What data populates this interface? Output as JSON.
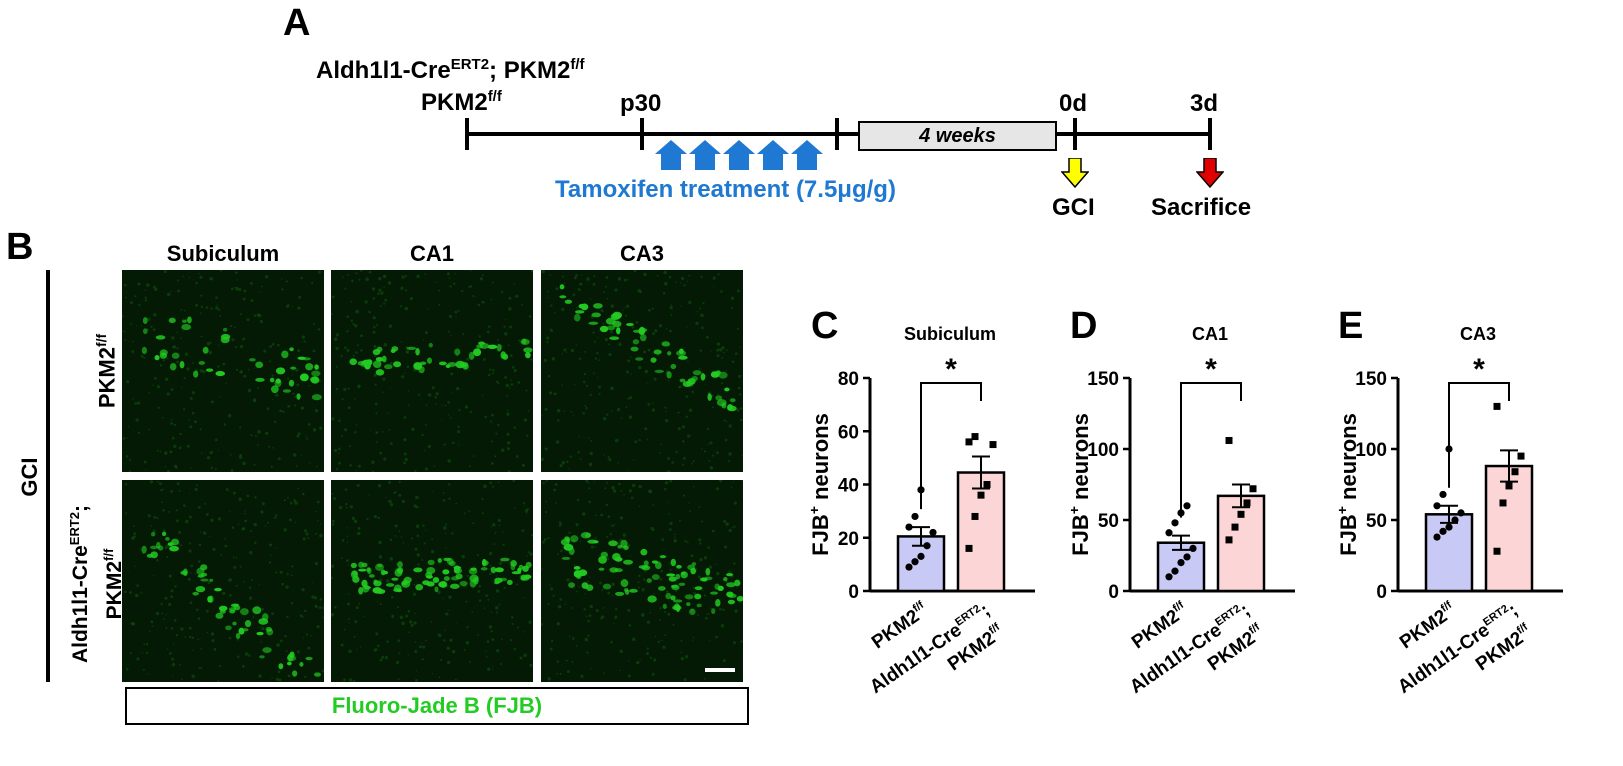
{
  "panel_letters": {
    "a": "A",
    "b": "B",
    "c": "C",
    "d": "D",
    "e": "E"
  },
  "timeline": {
    "genotype_line1_base": "Aldh1l1-Cre",
    "genotype_line1_sup": "ERT2",
    "genotype_line1_mid": "; PKM2",
    "genotype_line1_sup2": "f/f",
    "genotype_line2_base": "PKM2",
    "genotype_line2_sup": "f/f",
    "p30": "p30",
    "weeks_box": "4 weeks",
    "day0": "0d",
    "day3": "3d",
    "tamoxifen": "Tamoxifen treatment (7.5μg/g)",
    "gci": "GCI",
    "sacrifice": "Sacrifice",
    "injection_count": 5,
    "colors": {
      "tamoxifen": "#1f78d1",
      "gci_arrow": "#ffff00",
      "sacrifice_arrow": "#e00000",
      "box_fill": "#e6e6e6"
    }
  },
  "panel_b": {
    "regions": [
      "Subiculum",
      "CA1",
      "CA3"
    ],
    "condition": "GCI",
    "row1_base": "PKM2",
    "row1_sup": "f/f",
    "row2_line1_base": "Aldh1l1-Cre",
    "row2_line1_sup": "ERT2",
    "row2_line1_end": ";",
    "row2_line2_base": "PKM2",
    "row2_line2_sup": "f/f",
    "stain_label": "Fluoro-Jade B (FJB)",
    "colors": {
      "stain": "#22cc22",
      "scale_bar": "#ffffff"
    }
  },
  "chart_data": [
    {
      "type": "bar",
      "panel": "C",
      "title": "Subiculum",
      "ylabel": "FJB+ neurons",
      "ylim": [
        0,
        80
      ],
      "yticks": [
        0,
        20,
        40,
        60,
        80
      ],
      "categories": [
        "PKM2f/f",
        "Aldh1l1-CreERT2; PKM2f/f"
      ],
      "values": [
        20.5,
        44.5
      ],
      "sem": [
        3.5,
        6.0
      ],
      "points": [
        [
          9,
          11,
          13,
          17,
          22,
          24,
          28,
          38
        ],
        [
          16,
          28,
          36,
          40,
          55,
          56,
          58
        ]
      ],
      "significance": "*",
      "colors": [
        "#c9c9f5",
        "#fcd6d6"
      ]
    },
    {
      "type": "bar",
      "panel": "D",
      "title": "CA1",
      "ylabel": "FJB+ neurons",
      "ylim": [
        0,
        150
      ],
      "yticks": [
        0,
        50,
        100,
        150
      ],
      "categories": [
        "PKM2f/f",
        "Aldh1l1-CreERT2; PKM2f/f"
      ],
      "values": [
        34,
        67
      ],
      "sem": [
        5,
        8
      ],
      "points": [
        [
          10,
          14,
          20,
          24,
          30,
          41,
          48,
          55,
          60
        ],
        [
          36,
          45,
          54,
          62,
          72,
          106
        ]
      ],
      "significance": "*",
      "colors": [
        "#c9c9f5",
        "#fcd6d6"
      ]
    },
    {
      "type": "bar",
      "panel": "E",
      "title": "CA3",
      "ylabel": "FJB+ neurons",
      "ylim": [
        0,
        150
      ],
      "yticks": [
        0,
        50,
        100,
        150
      ],
      "categories": [
        "PKM2f/f",
        "Aldh1l1-CreERT2; PKM2f/f"
      ],
      "values": [
        54,
        88
      ],
      "sem": [
        6,
        11
      ],
      "points": [
        [
          38,
          42,
          45,
          50,
          55,
          60,
          68,
          100
        ],
        [
          28,
          62,
          74,
          84,
          95,
          130
        ]
      ],
      "significance": "*",
      "colors": [
        "#c9c9f5",
        "#fcd6d6"
      ]
    }
  ]
}
